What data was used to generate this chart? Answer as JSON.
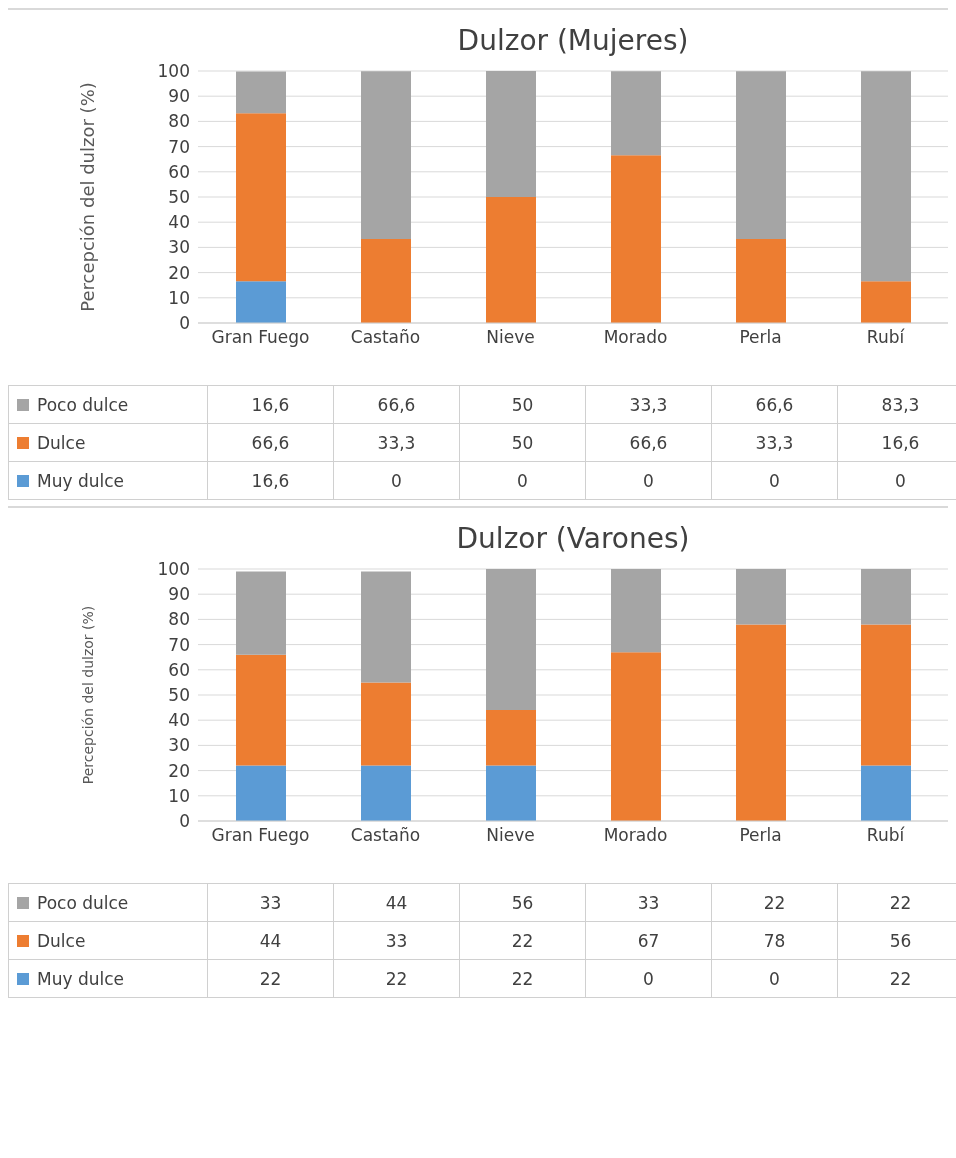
{
  "chart_data": [
    {
      "type": "bar",
      "title": "Dulzor (Mujeres)",
      "ylabel": "Percepción del dulzor (%)",
      "categories": [
        "Gran Fuego",
        "Castaño",
        "Nieve",
        "Morado",
        "Perla",
        "Rubí"
      ],
      "stacked": true,
      "ylim": [
        0,
        100
      ],
      "yticks": [
        0,
        10,
        20,
        30,
        40,
        50,
        60,
        70,
        80,
        90,
        100
      ],
      "grid": "y",
      "legend": "bottom",
      "series": [
        {
          "name": "Muy dulce",
          "color": "#5b9bd5",
          "values": [
            16.6,
            0,
            0,
            0,
            0,
            0
          ],
          "value_labels": [
            "16,6",
            "0",
            "0",
            "0",
            "0",
            "0"
          ]
        },
        {
          "name": "Dulce",
          "color": "#ed7d31",
          "values": [
            66.6,
            33.3,
            50,
            66.6,
            33.3,
            16.6
          ],
          "value_labels": [
            "66,6",
            "33,3",
            "50",
            "66,6",
            "33,3",
            "16,6"
          ]
        },
        {
          "name": "Poco dulce",
          "color": "#a5a5a5",
          "values": [
            16.6,
            66.6,
            50,
            33.3,
            66.6,
            83.3
          ],
          "value_labels": [
            "16,6",
            "66,6",
            "50",
            "33,3",
            "66,6",
            "83,3"
          ]
        }
      ]
    },
    {
      "type": "bar",
      "title": "Dulzor (Varones)",
      "ylabel": "Percepción del dulzor (%)",
      "categories": [
        "Gran Fuego",
        "Castaño",
        "Nieve",
        "Morado",
        "Perla",
        "Rubí"
      ],
      "stacked": true,
      "ylim": [
        0,
        100
      ],
      "yticks": [
        0,
        10,
        20,
        30,
        40,
        50,
        60,
        70,
        80,
        90,
        100
      ],
      "grid": "y",
      "legend": "bottom",
      "series": [
        {
          "name": "Muy dulce",
          "color": "#5b9bd5",
          "values": [
            22,
            22,
            22,
            0,
            0,
            22
          ],
          "value_labels": [
            "22",
            "22",
            "22",
            "0",
            "0",
            "22"
          ]
        },
        {
          "name": "Dulce",
          "color": "#ed7d31",
          "values": [
            44,
            33,
            22,
            67,
            78,
            56
          ],
          "value_labels": [
            "44",
            "33",
            "22",
            "67",
            "78",
            "56"
          ]
        },
        {
          "name": "Poco dulce",
          "color": "#a5a5a5",
          "values": [
            33,
            44,
            56,
            33,
            22,
            22
          ],
          "value_labels": [
            "33",
            "44",
            "56",
            "33",
            "22",
            "22"
          ]
        }
      ]
    }
  ]
}
